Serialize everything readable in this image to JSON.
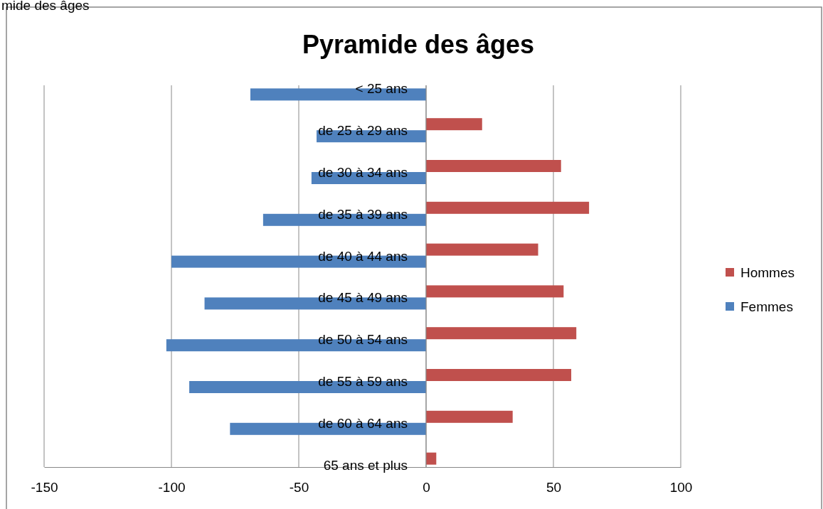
{
  "chart_data": {
    "type": "bar",
    "orientation": "horizontal",
    "title": "Pyramide des âges",
    "annotations": [
      "mide des âges"
    ],
    "categories": [
      "< 25 ans",
      "de 25 à 29 ans",
      "de 30 à 34 ans",
      "de 35 à 39 ans",
      "de 40 à 44 ans",
      "de 45 à 49 ans",
      "de 50 à 54 ans",
      "de 55 à 59 ans",
      "de 60 à 64 ans",
      "65 ans et plus"
    ],
    "series": [
      {
        "name": "Hommes",
        "color": "#c0504d",
        "values": [
          null,
          22,
          53,
          64,
          44,
          54,
          59,
          57,
          34,
          4
        ]
      },
      {
        "name": "Femmes",
        "color": "#4f81bd",
        "values": [
          -69,
          -43,
          -45,
          -64,
          -100,
          -87,
          -102,
          -93,
          -77,
          null
        ]
      }
    ],
    "xlim": [
      -150,
      100
    ],
    "xticks": [
      -150,
      -100,
      -50,
      0,
      50,
      100
    ],
    "grid": "x",
    "legend": "right"
  }
}
